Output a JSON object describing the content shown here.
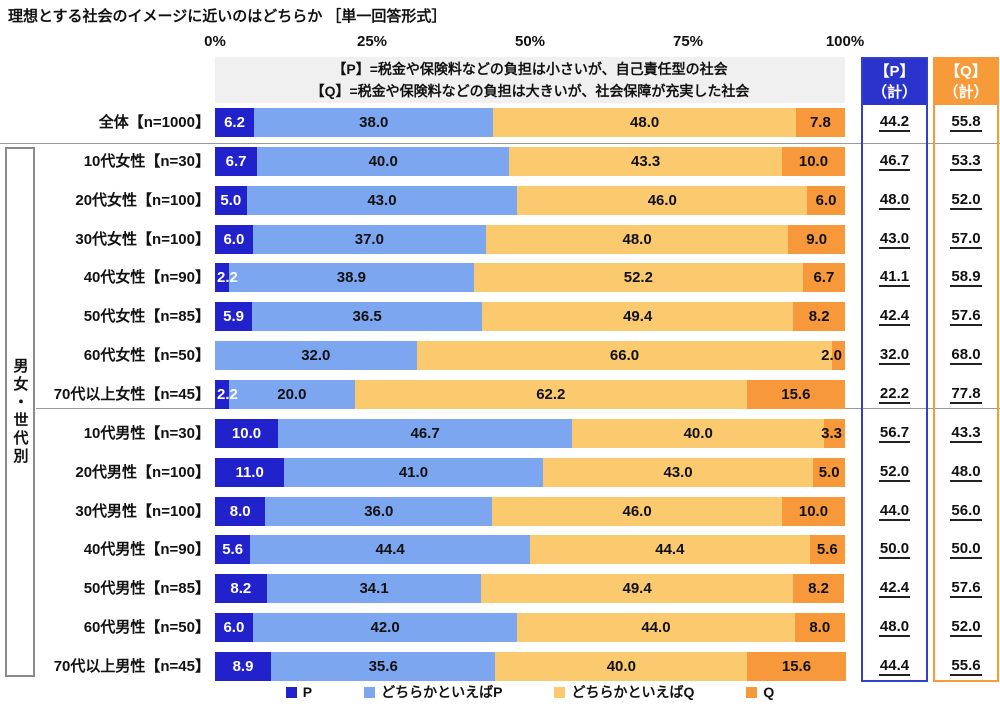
{
  "title": "理想とする社会のイメージに近いのはどちらか ［単一回答形式］",
  "axis": {
    "ticks": [
      "0%",
      "25%",
      "50%",
      "75%",
      "100%"
    ]
  },
  "note": {
    "line1": "【P】=税金や保険料などの負担は小さいが、自己責任型の社会",
    "line2": "【Q】=税金や保険料などの負担は大きいが、社会保障が充実した社会"
  },
  "group_label": "男女・世代別",
  "totals": {
    "p_header_line1": "【P】",
    "p_header_line2": "（計）",
    "q_header_line1": "【Q】",
    "q_header_line2": "（計）"
  },
  "legend": [
    {
      "label": "P",
      "color": "#2222cc"
    },
    {
      "label": "どちらかといえばP",
      "color": "#7da6f0"
    },
    {
      "label": "どちらかといえばQ",
      "color": "#fcca6e"
    },
    {
      "label": "Q",
      "color": "#f7993a"
    }
  ],
  "colors": {
    "p": "#2222cc",
    "rather_p": "#7da6f0",
    "rather_q": "#fcca6e",
    "q": "#f7993a",
    "p_header_bg": "#2a33cc",
    "q_header_bg": "#f79a3a",
    "note_bg": "#f0f0f0",
    "separator": "#9a9a9a"
  },
  "chart_data": {
    "type": "bar",
    "stacked": true,
    "orientation": "horizontal",
    "xlim": [
      0,
      100
    ],
    "xticks": [
      0,
      25,
      50,
      75,
      100
    ],
    "categories": [
      "全体【n=1000】",
      "10代女性【n=30】",
      "20代女性【n=100】",
      "30代女性【n=100】",
      "40代女性【n=90】",
      "50代女性【n=85】",
      "60代女性【n=50】",
      "70代以上女性【n=45】",
      "10代男性【n=30】",
      "20代男性【n=100】",
      "30代男性【n=100】",
      "40代男性【n=90】",
      "50代男性【n=85】",
      "60代男性【n=50】",
      "70代以上男性【n=45】"
    ],
    "series": [
      {
        "name": "P",
        "color": "#2222cc",
        "values": [
          6.2,
          6.7,
          5.0,
          6.0,
          2.2,
          5.9,
          0,
          2.2,
          10.0,
          11.0,
          8.0,
          5.6,
          8.2,
          6.0,
          8.9
        ]
      },
      {
        "name": "どちらかといえばP",
        "color": "#7da6f0",
        "values": [
          38.0,
          40.0,
          43.0,
          37.0,
          38.9,
          36.5,
          32.0,
          20.0,
          46.7,
          41.0,
          36.0,
          44.4,
          34.1,
          42.0,
          35.6
        ]
      },
      {
        "name": "どちらかといえばQ",
        "color": "#fcca6e",
        "values": [
          48.0,
          43.3,
          46.0,
          48.0,
          52.2,
          49.4,
          66.0,
          62.2,
          40.0,
          43.0,
          46.0,
          44.4,
          49.4,
          44.0,
          40.0
        ]
      },
      {
        "name": "Q",
        "color": "#f7993a",
        "values": [
          7.8,
          10.0,
          6.0,
          9.0,
          6.7,
          8.2,
          2.0,
          15.6,
          3.3,
          5.0,
          10.0,
          5.6,
          8.2,
          8.0,
          15.6
        ]
      }
    ],
    "p_total": [
      44.2,
      46.7,
      48.0,
      43.0,
      41.1,
      42.4,
      32.0,
      22.2,
      56.7,
      52.0,
      44.0,
      50.0,
      42.4,
      48.0,
      44.4
    ],
    "q_total": [
      55.8,
      53.3,
      52.0,
      57.0,
      58.9,
      57.6,
      68.0,
      77.8,
      43.3,
      48.0,
      56.0,
      50.0,
      57.6,
      52.0,
      55.6
    ]
  }
}
